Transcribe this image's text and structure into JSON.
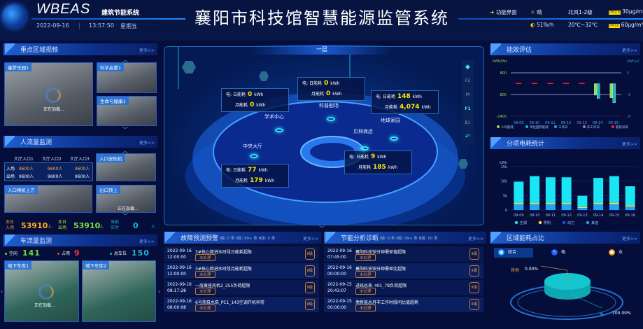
{
  "header": {
    "brand": "WBEAS",
    "brand_sub": "建筑节能系统",
    "date": "2022-09-16",
    "time": "13:57:50",
    "weekday": "星期五",
    "title": "襄阳市科技馆智慧能源监管系统",
    "function_link": "功能界面",
    "weather": "晴",
    "wind": "北风1-2级",
    "pm25_label": "PM2.5",
    "pm25": "30μg/m³",
    "humidity": "51%rh",
    "temperature": "20℃~32℃",
    "pm10_label": "PM10",
    "pm10": "60μg/m³"
  },
  "more": "更多>>",
  "video": {
    "title": "重点区域视频",
    "cams": [
      {
        "label": "童梦乐园1",
        "loading": "正在加载..."
      },
      {
        "label": "科学启蒙1"
      },
      {
        "label": "生命与健康1"
      }
    ]
  },
  "people": {
    "title": "人流量监测",
    "columns": [
      "大厅入口1",
      "大厅入口2",
      "大厅入口3"
    ],
    "rows": [
      {
        "label": "入场",
        "values": [
          "9600人",
          "9600人",
          "9600人"
        ]
      },
      {
        "label": "出场",
        "values": [
          "9600人",
          "9600人",
          "9600人"
        ]
      }
    ],
    "cams": [
      {
        "label": "入口安检机"
      },
      {
        "label": "入口闸机上方"
      },
      {
        "label": "出口顶上",
        "loading": "正在加载..."
      }
    ],
    "stats": [
      {
        "label1": "本日",
        "label2": "入场",
        "value": "53910",
        "unit": "人"
      },
      {
        "label1": "本日",
        "label2": "出场",
        "value": "53910",
        "unit": "人"
      },
      {
        "label1": "当前",
        "label2": "实时",
        "value": "0",
        "unit": "人"
      }
    ]
  },
  "vehicle": {
    "title": "车流量监测",
    "free_label": "空闲",
    "free": "141",
    "used_label": "占用",
    "used": "9",
    "total_label": "总车位",
    "total": "150",
    "cams": [
      {
        "label": "地下车库1",
        "loading": "正在加载..."
      },
      {
        "label": "地下车库2"
      }
    ]
  },
  "map": {
    "floor_title": "一层",
    "floors": [
      "F2",
      "M",
      "F1",
      "B1"
    ],
    "active_floor": "F1",
    "elec_label": "电:",
    "day_label": "日能耗",
    "month_label": "月能耗",
    "unit": "kWh",
    "areas": [
      {
        "name": "学术中心",
        "day": "0",
        "month": "0"
      },
      {
        "name": "科普剧场",
        "day": "0",
        "month": "0"
      },
      {
        "name": "地球家园",
        "day": "148",
        "month": "4,074"
      },
      {
        "name": "贝林商店",
        "day": "9",
        "month": "185"
      },
      {
        "name": "中央大厅",
        "day": "77",
        "month": "179"
      }
    ]
  },
  "fault": {
    "title": "故障预测预警",
    "counts": "Ⅰ级: 0 条 Ⅱ级: 99+ 条 Ⅲ级: 0 条",
    "items": [
      {
        "date": "2022-09-16",
        "time": "12:00:00",
        "desc": "3#核心筒进水时段日能耗超限",
        "status": "未处理",
        "level": "Ⅱ级"
      },
      {
        "date": "2022-09-16",
        "time": "12:00:00",
        "desc": "3#核心筒进水时段月能耗超限",
        "status": "未处理",
        "level": "Ⅱ级"
      },
      {
        "date": "2022-09-16",
        "time": "08:17:28",
        "desc": "一层東座风机2_255负荷超限",
        "status": "未处理",
        "level": "Ⅱ级"
      },
      {
        "date": "2022-09-16",
        "time": "08:00:08",
        "desc": "6号热泵水泵_PC1_143空调开机异常",
        "status": "未处理",
        "level": "Ⅱ级"
      }
    ]
  },
  "saving": {
    "title": "节能分析诊断",
    "counts": "Ⅰ级: 0 条 Ⅱ级: 99+ 条 Ⅲ级: 00 条",
    "items": [
      {
        "date": "2022-09-16",
        "time": "07:45:00",
        "desc": "襄阳科技馆分钟需差值超限",
        "status": "未处理",
        "level": "Ⅱ级"
      },
      {
        "date": "2022-09-16",
        "time": "00:00:00",
        "desc": "襄阳科技馆分钟需差比超限",
        "status": "未处理",
        "level": "Ⅱ级"
      },
      {
        "date": "2022-09-15",
        "time": "20:43:07",
        "desc": "进线总表_401_78负荷超限",
        "status": "未处理",
        "level": "Ⅱ级"
      },
      {
        "date": "2022-09-15",
        "time": "00:00:00",
        "desc": "债新能总月非工作时段同比值超耗",
        "status": "未处理",
        "level": "Ⅱ级"
      }
    ]
  },
  "chart_data": [
    {
      "type": "bar",
      "title": "能效评估",
      "ylabel": "kWh/Per",
      "y2label": "kWh/㎡",
      "ylim": [
        -2400,
        800
      ],
      "y2lim": [
        -9,
        3
      ],
      "yticks": [
        "800",
        "-800",
        "-2400"
      ],
      "y2ticks": [
        "3",
        "-3",
        "-9"
      ],
      "categories": [
        "09-09",
        "09-10",
        "09-11",
        "09-12",
        "09-13",
        "09-14",
        "09-15"
      ],
      "series": [
        {
          "name": "人均能耗",
          "axis": "left",
          "color": "#8be04e",
          "values": [
            0,
            0,
            0,
            0,
            0,
            -850,
            -1050
          ]
        },
        {
          "name": "单位面积能耗",
          "axis": "right",
          "color": "#12b5c4",
          "values": [
            0,
            0,
            0,
            0,
            0,
            -4.1,
            -5.3
          ]
        }
      ],
      "anomaly": {
        "name": "能耗异常",
        "color": "#ff2020",
        "categories": [
          "09-09",
          "09-10",
          "09-11",
          "09-12",
          "09-13"
        ]
      },
      "legend": [
        {
          "name": "人均能耗",
          "color": "#8be04e"
        },
        {
          "name": "单位面积能耗",
          "color": "#12b5c4"
        },
        {
          "name": "工作日",
          "color": "#1e9fff"
        },
        {
          "name": "非工作日",
          "color": "#a07cd8"
        },
        {
          "name": "能耗异常",
          "color": "#ff2020"
        }
      ],
      "legend_position": "bottom",
      "nonworkday": [
        "09-13"
      ]
    },
    {
      "type": "bar",
      "stacked": true,
      "title": "分项电耗统计",
      "ylabel": "kWh",
      "ylim": [
        0,
        15000
      ],
      "yticks": [
        "0",
        "5k",
        "10k",
        "15k"
      ],
      "categories": [
        "09-09",
        "09-10",
        "09-11",
        "09-12",
        "09-13",
        "09-14",
        "09-15",
        "09-16"
      ],
      "series": [
        {
          "name": "其他",
          "color": "#1aa8ff",
          "values": [
            1800,
            1800,
            1800,
            1800,
            600,
            1800,
            1800,
            1000
          ]
        },
        {
          "name": "动力",
          "color": "#0a5bff",
          "values": [
            100,
            100,
            100,
            100,
            100,
            100,
            100,
            100
          ]
        },
        {
          "name": "照明",
          "color": "#ffd84a",
          "values": [
            500,
            500,
            500,
            500,
            300,
            500,
            600,
            500
          ]
        },
        {
          "name": "空调",
          "color": "#19e6f5",
          "values": [
            7400,
            9300,
            8900,
            8900,
            3900,
            8700,
            9200,
            6600
          ]
        }
      ],
      "legend_order": [
        "空调",
        "照明",
        "动力",
        "其他"
      ],
      "legend_position": "bottom"
    },
    {
      "type": "pie",
      "title": "区域能耗占比",
      "tabs": [
        {
          "label": "综合",
          "active": true
        },
        {
          "label": "电"
        },
        {
          "label": "水"
        }
      ],
      "slices": [
        {
          "name": "其他",
          "value": 0,
          "label": "0.00%",
          "color": "#c88a3a"
        },
        {
          "name": "水",
          "value": 100,
          "label": "100.00%",
          "color": "#16c6cf"
        }
      ]
    }
  ]
}
